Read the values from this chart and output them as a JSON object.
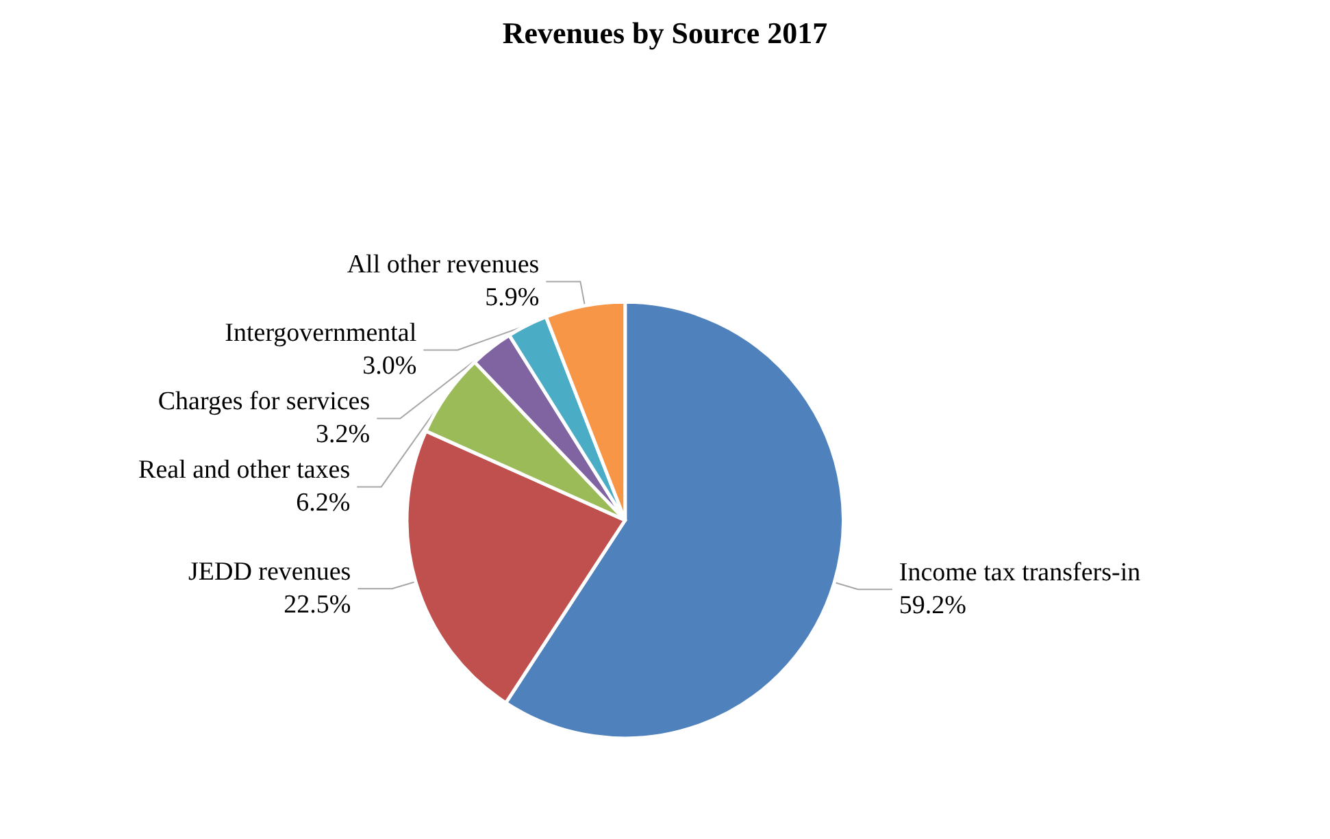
{
  "chart_data": {
    "type": "pie",
    "title": "Revenues by Source 2017",
    "categories": [
      "Income tax transfers-in",
      "JEDD revenues",
      "Real and other taxes",
      "Charges for services",
      "Intergovernmental",
      "All other revenues"
    ],
    "values": [
      59.2,
      22.5,
      6.2,
      3.2,
      3.0,
      5.9
    ],
    "value_labels": [
      "59.2%",
      "22.5%",
      "6.2%",
      "3.2%",
      "3.0%",
      "5.9%"
    ],
    "colors": [
      "#4f81bd",
      "#c0504d",
      "#9bbb59",
      "#8064a2",
      "#4bacc6",
      "#f79646"
    ],
    "legend": false
  }
}
